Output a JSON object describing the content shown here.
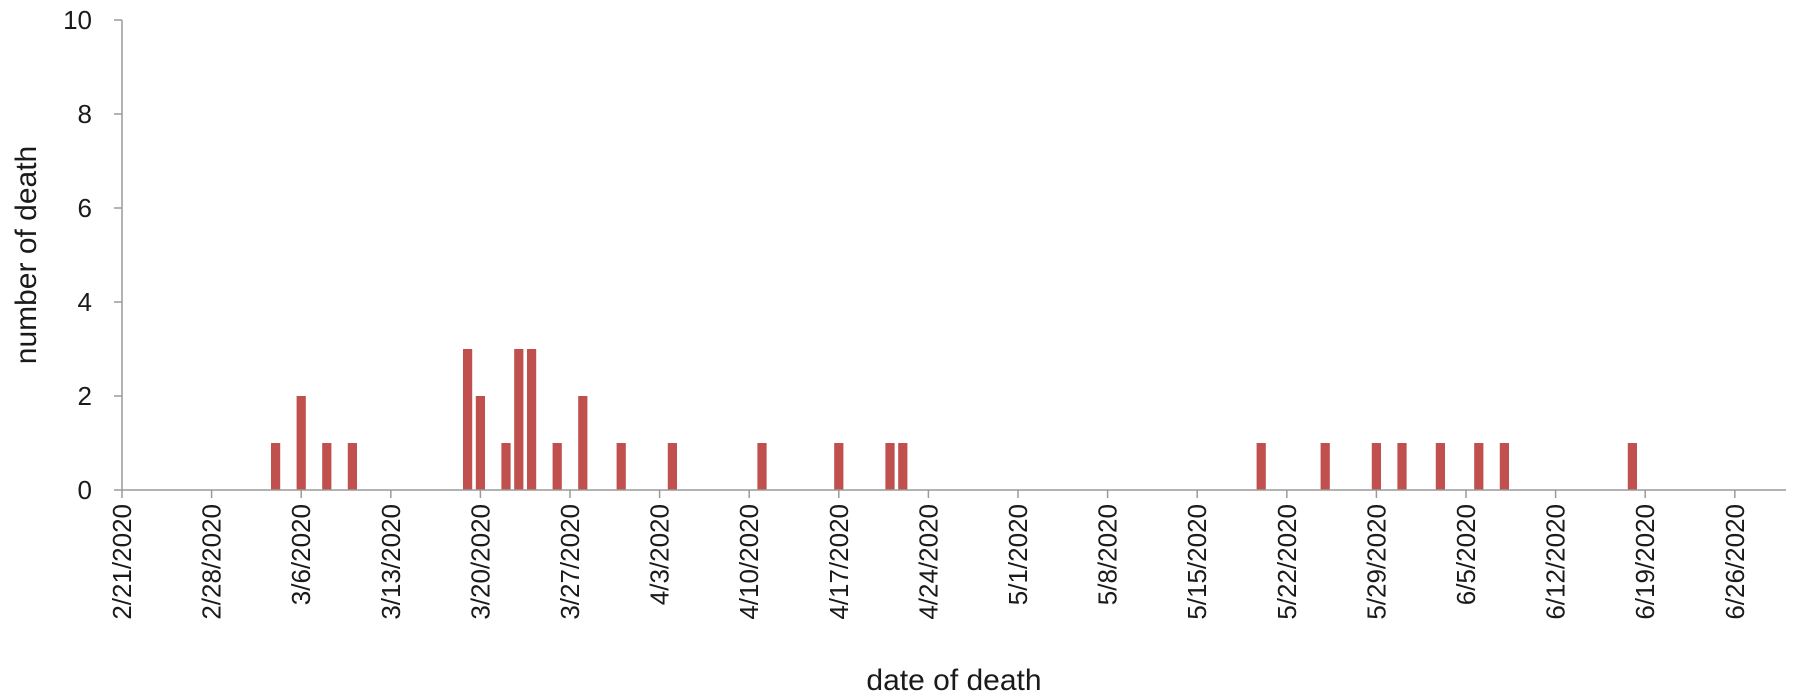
{
  "chart_data": {
    "type": "bar",
    "title": "",
    "xlabel": "date of death",
    "ylabel": "number of death",
    "ylim": [
      0,
      10
    ],
    "yticks": [
      "0",
      "2",
      "4",
      "6",
      "8",
      "10"
    ],
    "xlim": [
      "2020-02-21",
      "2020-06-30"
    ],
    "xticks": [
      "2/21/2020",
      "2/28/2020",
      "3/6/2020",
      "3/13/2020",
      "3/20/2020",
      "3/27/2020",
      "4/3/2020",
      "4/10/2020",
      "4/17/2020",
      "4/24/2020",
      "5/1/2020",
      "5/8/2020",
      "5/15/2020",
      "5/22/2020",
      "5/29/2020",
      "6/5/2020",
      "6/12/2020",
      "6/19/2020",
      "6/26/2020"
    ],
    "grid": false,
    "legend": "none",
    "bar_color": "#c0504d",
    "series": [
      {
        "points": [
          {
            "x": "3/4/2020",
            "y": 1
          },
          {
            "x": "3/6/2020",
            "y": 2
          },
          {
            "x": "3/8/2020",
            "y": 1
          },
          {
            "x": "3/10/2020",
            "y": 1
          },
          {
            "x": "3/19/2020",
            "y": 3
          },
          {
            "x": "3/20/2020",
            "y": 2
          },
          {
            "x": "3/22/2020",
            "y": 1
          },
          {
            "x": "3/23/2020",
            "y": 3
          },
          {
            "x": "3/24/2020",
            "y": 3
          },
          {
            "x": "3/26/2020",
            "y": 1
          },
          {
            "x": "3/28/2020",
            "y": 2
          },
          {
            "x": "3/31/2020",
            "y": 1
          },
          {
            "x": "4/4/2020",
            "y": 1
          },
          {
            "x": "4/11/2020",
            "y": 1
          },
          {
            "x": "4/17/2020",
            "y": 1
          },
          {
            "x": "4/21/2020",
            "y": 1
          },
          {
            "x": "4/22/2020",
            "y": 1
          },
          {
            "x": "5/20/2020",
            "y": 1
          },
          {
            "x": "5/25/2020",
            "y": 1
          },
          {
            "x": "5/29/2020",
            "y": 1
          },
          {
            "x": "5/31/2020",
            "y": 1
          },
          {
            "x": "6/3/2020",
            "y": 1
          },
          {
            "x": "6/6/2020",
            "y": 1
          },
          {
            "x": "6/8/2020",
            "y": 1
          },
          {
            "x": "6/18/2020",
            "y": 1
          }
        ]
      }
    ]
  }
}
